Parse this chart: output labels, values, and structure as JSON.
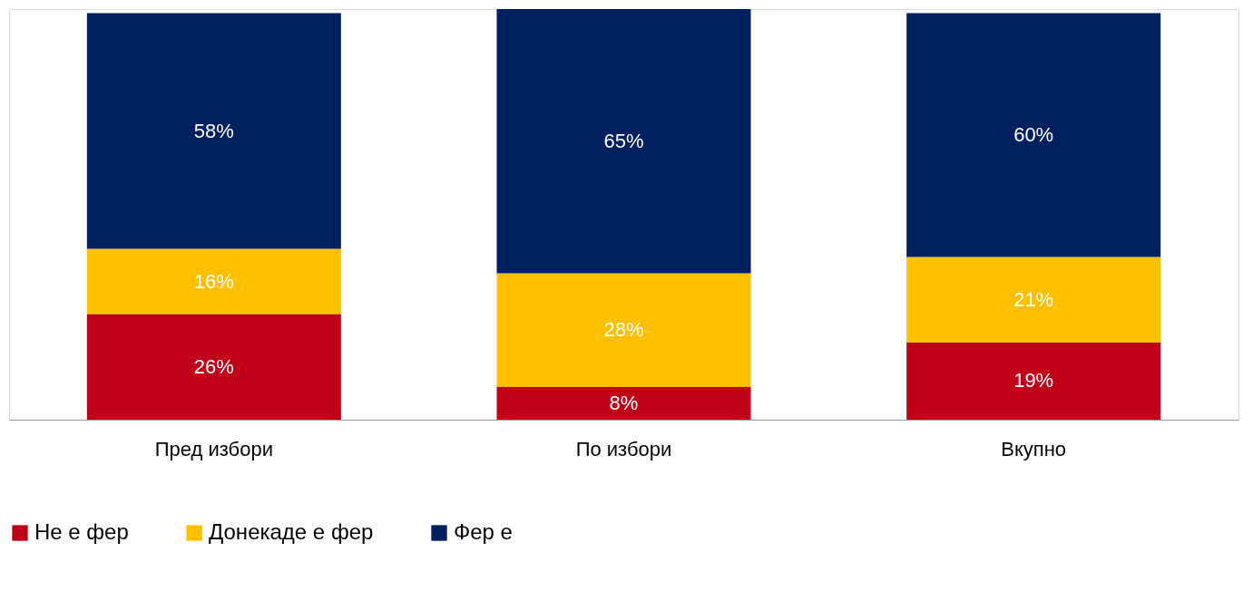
{
  "chart_data": {
    "type": "bar",
    "stacked": true,
    "legend": "bottom",
    "categories": [
      "Пред избори",
      "По избори",
      "Вкупно"
    ],
    "series": [
      {
        "name": "Не е фер",
        "color": "#c00018",
        "values": [
          26,
          8,
          19
        ],
        "value_labels": [
          "26%",
          "8%",
          "19%"
        ]
      },
      {
        "name": "Донекаде е фер",
        "color": "#ffc000",
        "values": [
          16,
          28,
          21
        ],
        "value_labels": [
          "16%",
          "28%",
          "21%"
        ]
      },
      {
        "name": "Фер е",
        "color": "#002060",
        "values": [
          58,
          65,
          60
        ],
        "value_labels": [
          "58%",
          "65%",
          "60%"
        ]
      }
    ]
  }
}
